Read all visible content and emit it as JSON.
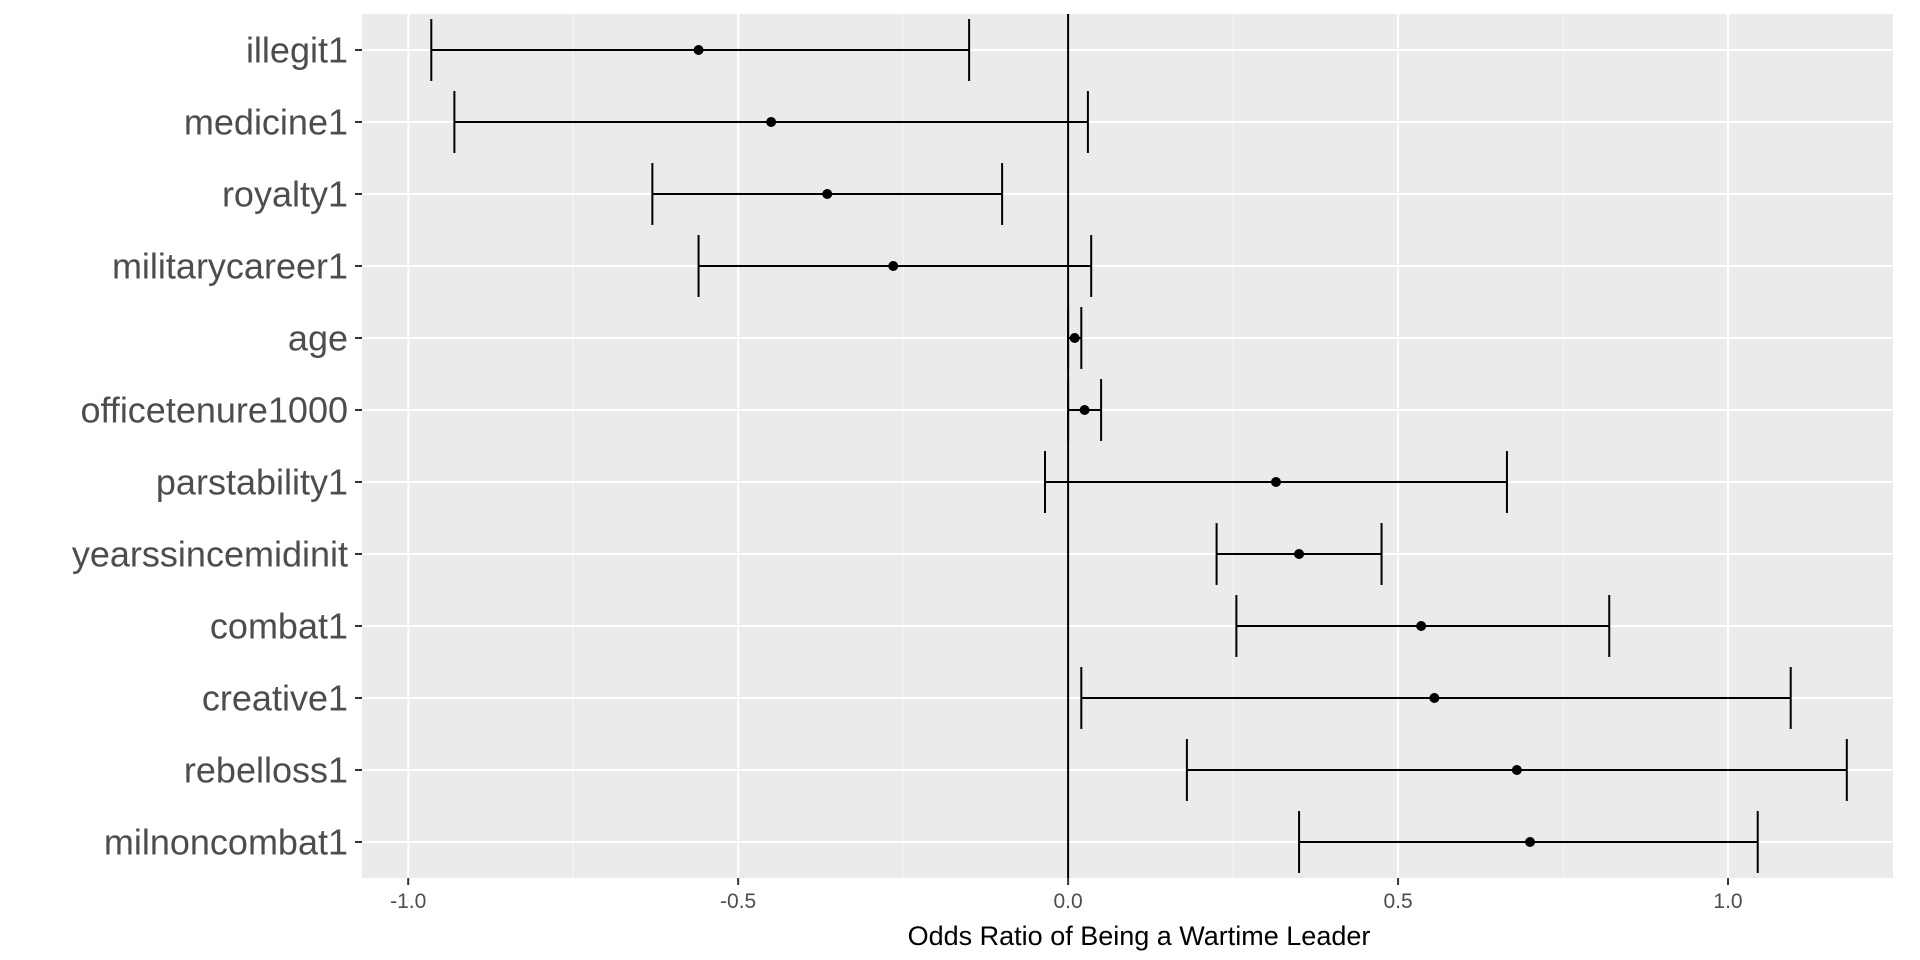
{
  "chart_data": {
    "type": "errorbar",
    "orientation": "horizontal",
    "xlabel": "Odds Ratio of Being a Wartime Leader",
    "ylabel": "",
    "title": "",
    "xlim": [
      -1.07,
      1.25
    ],
    "xticks": [
      -1.0,
      -0.5,
      0.0,
      0.5,
      1.0
    ],
    "xtick_labels": [
      "-1.0",
      "-0.5",
      "0.0",
      "0.5",
      "1.0"
    ],
    "grid": true,
    "reference_line_x": 0,
    "categories": [
      "illegit1",
      "medicine1",
      "royalty1",
      "militarycareer1",
      "age",
      "officetenure1000",
      "parstability1",
      "yearssincemidinit",
      "combat1",
      "creative1",
      "rebelloss1",
      "milnoncombat1"
    ],
    "estimates": [
      -0.56,
      -0.45,
      -0.365,
      -0.265,
      0.01,
      0.025,
      0.315,
      0.35,
      0.535,
      0.555,
      0.68,
      0.7
    ],
    "lower": [
      -0.965,
      -0.93,
      -0.63,
      -0.56,
      0.0,
      0.0,
      -0.035,
      0.225,
      0.255,
      0.02,
      0.18,
      0.35
    ],
    "upper": [
      -0.15,
      0.03,
      -0.1,
      0.035,
      0.02,
      0.05,
      0.665,
      0.475,
      0.82,
      1.095,
      1.18,
      1.045
    ],
    "colors": {
      "panel_background": "#ebebeb",
      "grid_major": "#ffffff",
      "grid_minor": "#f5f5f5",
      "marks": "#000000",
      "tick_text": "#4d4d4d"
    }
  }
}
